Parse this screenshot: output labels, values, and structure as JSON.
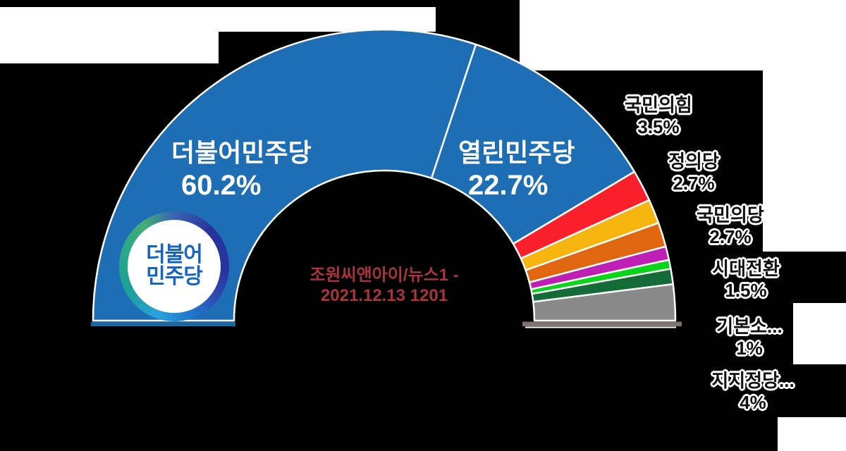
{
  "chart_data": {
    "type": "pie",
    "variant": "half-donut-gauge",
    "legend_position": "callouts-right",
    "background": "#000000",
    "slices": [
      {
        "key": "deobureo-minjoo",
        "label": "더불어민주당",
        "value": 60.2,
        "pct_text": "60.2%",
        "color": "#1d6eb5"
      },
      {
        "key": "open-minjoo",
        "label": "열린민주당",
        "value": 22.7,
        "pct_text": "22.7%",
        "color": "#1d6eb5"
      },
      {
        "key": "people-power",
        "label": "국민의힘",
        "value": 3.5,
        "pct_text": "3.5%",
        "color": "#f9202c"
      },
      {
        "key": "justice-party",
        "label": "정의당",
        "value": 2.7,
        "pct_text": "2.7%",
        "color": "#f6b60f"
      },
      {
        "key": "peoples-party",
        "label": "국민의당",
        "value": 2.7,
        "pct_text": "2.7%",
        "color": "#e0660f"
      },
      {
        "key": "transition-korea",
        "label": "시대전환",
        "value": 1.5,
        "pct_text": "1.5%",
        "color": "#bf1fb4"
      },
      {
        "key": "basic-income",
        "label": "기본소...",
        "value": 1,
        "pct_text": "1%",
        "color": "#0bd51b"
      },
      {
        "key": "unlabeled",
        "label": "",
        "value": 1.7,
        "pct_text": "",
        "color": "#156b38"
      },
      {
        "key": "no-party",
        "label": "지지정당...",
        "value": 4,
        "pct_text": "4%",
        "color": "#8a8a8a"
      }
    ],
    "depth_colors": {
      "left": "#1a67a6",
      "right": "#7d7370"
    },
    "separator_color": "#ffffff",
    "source_line1": "조원씨앤아이/뉴스1 -",
    "source_line2": "2021.12.13 1201"
  },
  "logo": {
    "line1": "더불어",
    "line2": "민주당"
  }
}
